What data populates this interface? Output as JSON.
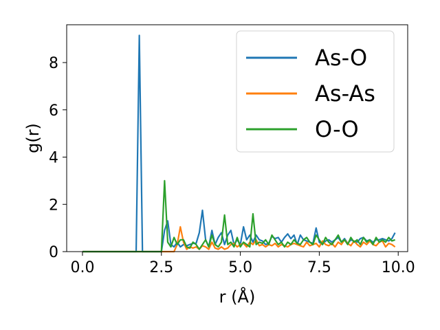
{
  "chart_data": {
    "type": "line",
    "title": "",
    "xlabel": "r (Å)",
    "ylabel": "g(r)",
    "xlim": [
      -0.5,
      10.3
    ],
    "ylim": [
      0,
      9.6
    ],
    "xticks": [
      "0.0",
      "2.5",
      "5.0",
      "7.5",
      "10.0"
    ],
    "xtick_values": [
      0,
      2.5,
      5,
      7.5,
      10
    ],
    "yticks": [
      "0",
      "2",
      "4",
      "6",
      "8"
    ],
    "ytick_values": [
      0,
      2,
      4,
      6,
      8
    ],
    "grid": false,
    "legend_position": "top-right",
    "x": [
      0.0,
      0.1,
      0.2,
      0.3,
      0.4,
      0.5,
      0.6,
      0.7,
      0.8,
      0.9,
      1.0,
      1.1,
      1.2,
      1.3,
      1.4,
      1.5,
      1.6,
      1.7,
      1.8,
      1.9,
      2.0,
      2.1,
      2.2,
      2.3,
      2.4,
      2.5,
      2.6,
      2.7,
      2.8,
      2.9,
      3.0,
      3.1,
      3.2,
      3.3,
      3.4,
      3.5,
      3.6,
      3.7,
      3.8,
      3.9,
      4.0,
      4.1,
      4.2,
      4.3,
      4.4,
      4.5,
      4.6,
      4.7,
      4.8,
      4.9,
      5.0,
      5.1,
      5.2,
      5.3,
      5.4,
      5.5,
      5.6,
      5.7,
      5.8,
      5.9,
      6.0,
      6.1,
      6.2,
      6.3,
      6.4,
      6.5,
      6.6,
      6.7,
      6.8,
      6.9,
      7.0,
      7.1,
      7.2,
      7.3,
      7.4,
      7.5,
      7.6,
      7.7,
      7.8,
      7.9,
      8.0,
      8.1,
      8.2,
      8.3,
      8.4,
      8.5,
      8.6,
      8.7,
      8.8,
      8.9,
      9.0,
      9.1,
      9.2,
      9.3,
      9.4,
      9.5,
      9.6,
      9.7,
      9.8,
      9.9
    ],
    "series": [
      {
        "name": "As-O",
        "color": "#1f77b4",
        "values": [
          0,
          0,
          0,
          0,
          0,
          0,
          0,
          0,
          0,
          0,
          0,
          0,
          0,
          0,
          0,
          0,
          0,
          0,
          9.15,
          0,
          0,
          0,
          0,
          0,
          0,
          0,
          0.9,
          1.3,
          0.3,
          0.2,
          0.4,
          0.2,
          0.3,
          0.25,
          0.3,
          0.35,
          0.35,
          0.8,
          1.75,
          0.5,
          0.2,
          0.9,
          0.3,
          0.6,
          0.8,
          0.3,
          0.7,
          0.9,
          0.3,
          0.5,
          0.3,
          1.05,
          0.5,
          0.7,
          0.4,
          0.7,
          0.5,
          0.45,
          0.3,
          0.35,
          0.65,
          0.55,
          0.6,
          0.4,
          0.6,
          0.75,
          0.55,
          0.7,
          0.3,
          0.7,
          0.5,
          0.45,
          0.4,
          0.35,
          1.0,
          0.4,
          0.3,
          0.45,
          0.5,
          0.4,
          0.5,
          0.6,
          0.4,
          0.55,
          0.35,
          0.5,
          0.45,
          0.4,
          0.55,
          0.6,
          0.45,
          0.5,
          0.4,
          0.5,
          0.5,
          0.55,
          0.5,
          0.45,
          0.55,
          0.8
        ]
      },
      {
        "name": "As-As",
        "color": "#ff7f0e",
        "values": [
          0,
          0,
          0,
          0,
          0,
          0,
          0,
          0,
          0,
          0,
          0,
          0,
          0,
          0,
          0,
          0,
          0,
          0,
          0,
          0,
          0,
          0,
          0,
          0,
          0,
          0,
          0,
          0,
          0,
          0,
          0.3,
          1.05,
          0.4,
          0.1,
          0.2,
          0.15,
          0.2,
          0.1,
          0.25,
          0.2,
          0.1,
          0.4,
          0.15,
          0.1,
          0.2,
          0.1,
          0.15,
          0.3,
          0.35,
          0.2,
          0.3,
          0.35,
          0.2,
          0.4,
          0.3,
          0.5,
          0.25,
          0.3,
          0.2,
          0.3,
          0.25,
          0.35,
          0.2,
          0.3,
          0.25,
          0.2,
          0.3,
          0.35,
          0.3,
          0.25,
          0.2,
          0.4,
          0.25,
          0.3,
          0.35,
          0.2,
          0.45,
          0.3,
          0.25,
          0.35,
          0.2,
          0.4,
          0.3,
          0.5,
          0.35,
          0.25,
          0.45,
          0.3,
          0.2,
          0.4,
          0.3,
          0.45,
          0.3,
          0.25,
          0.4,
          0.45,
          0.2,
          0.35,
          0.3,
          0.2
        ]
      },
      {
        "name": "O-O",
        "color": "#2ca02c",
        "values": [
          0,
          0,
          0,
          0,
          0,
          0,
          0,
          0,
          0,
          0,
          0,
          0,
          0,
          0,
          0,
          0,
          0,
          0,
          0,
          0,
          0,
          0,
          0,
          0,
          0,
          0,
          3.0,
          0.4,
          0.2,
          0.6,
          0.3,
          0.5,
          0.5,
          0.2,
          0.15,
          0.4,
          0.3,
          0.1,
          0.3,
          0.5,
          0.2,
          0.7,
          0.3,
          0.2,
          0.4,
          1.55,
          0.3,
          0.4,
          0.2,
          0.6,
          0.2,
          0.4,
          0.3,
          0.2,
          1.6,
          0.3,
          0.4,
          0.35,
          0.5,
          0.3,
          0.7,
          0.5,
          0.3,
          0.4,
          0.2,
          0.4,
          0.3,
          0.5,
          0.35,
          0.3,
          0.5,
          0.6,
          0.4,
          0.3,
          0.7,
          0.5,
          0.3,
          0.6,
          0.4,
          0.3,
          0.5,
          0.7,
          0.4,
          0.5,
          0.3,
          0.6,
          0.4,
          0.5,
          0.3,
          0.6,
          0.4,
          0.5,
          0.3,
          0.6,
          0.4,
          0.5,
          0.4,
          0.6,
          0.45,
          0.5
        ]
      }
    ]
  }
}
